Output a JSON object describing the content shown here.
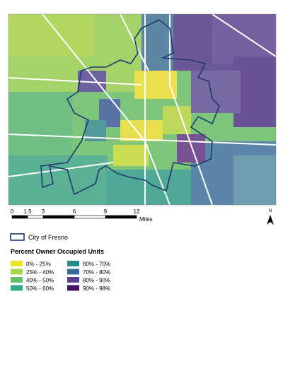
{
  "scale_bar": {
    "ticks": [
      0,
      1.5,
      3,
      6,
      9,
      12
    ],
    "unit": "Miles"
  },
  "north_arrow": "N",
  "legend": {
    "boundary": {
      "label": "City of Fresno",
      "color": "#1f3a6e"
    },
    "title": "Percent Owner Occupied Units",
    "classes": [
      {
        "label": "0% - 25%",
        "color": "#f2e224"
      },
      {
        "label": "25% - 40%",
        "color": "#a8d24c"
      },
      {
        "label": "40% - 50%",
        "color": "#62be68"
      },
      {
        "label": "50% - 60%",
        "color": "#35aa88"
      },
      {
        "label": "60% - 70%",
        "color": "#2a8b8e"
      },
      {
        "label": "70% - 80%",
        "color": "#3b6b9b"
      },
      {
        "label": "80% - 90%",
        "color": "#5a3f8c"
      },
      {
        "label": "90% - 98%",
        "color": "#46135e"
      }
    ]
  }
}
